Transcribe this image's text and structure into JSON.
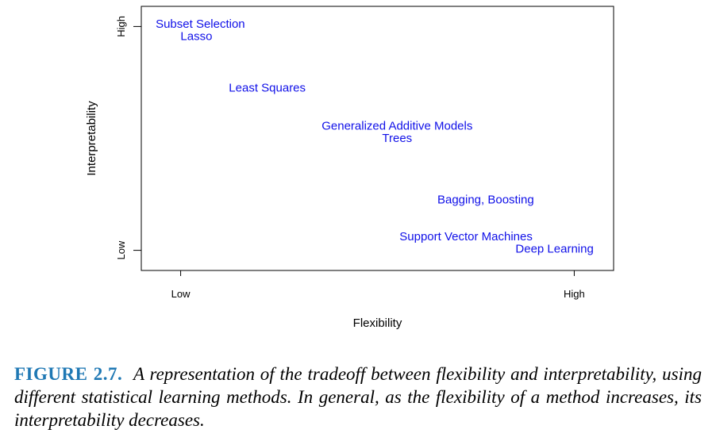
{
  "chart_data": {
    "type": "scatter",
    "xlabel": "Flexibility",
    "ylabel": "Interpretability",
    "x_ticks": [
      {
        "value": 0,
        "label": "Low"
      },
      {
        "value": 1,
        "label": "High"
      }
    ],
    "y_ticks": [
      {
        "value": 0,
        "label": "Low"
      },
      {
        "value": 1,
        "label": "High"
      }
    ],
    "xlim": [
      -0.1,
      1.1
    ],
    "ylim": [
      -0.09,
      1.09
    ],
    "points": [
      {
        "label": "Subset Selection",
        "x": 0.05,
        "y": 1.01
      },
      {
        "label": "Lasso",
        "x": 0.04,
        "y": 0.955
      },
      {
        "label": "Least Squares",
        "x": 0.22,
        "y": 0.725
      },
      {
        "label": "Generalized Additive Models",
        "x": 0.55,
        "y": 0.555
      },
      {
        "label": "Trees",
        "x": 0.55,
        "y": 0.5
      },
      {
        "label": "Bagging, Boosting",
        "x": 0.775,
        "y": 0.225
      },
      {
        "label": "Support Vector Machines",
        "x": 0.725,
        "y": 0.06
      },
      {
        "label": "Deep Learning",
        "x": 0.95,
        "y": 0.005
      }
    ],
    "label_color": "#1010e8"
  },
  "caption": {
    "figure_number": "FIGURE 2.7.",
    "text": "A representation of the tradeoff between flexibility and interpretability, using different statistical learning methods. In general, as the flexibility of a method increases, its interpretability decreases."
  }
}
